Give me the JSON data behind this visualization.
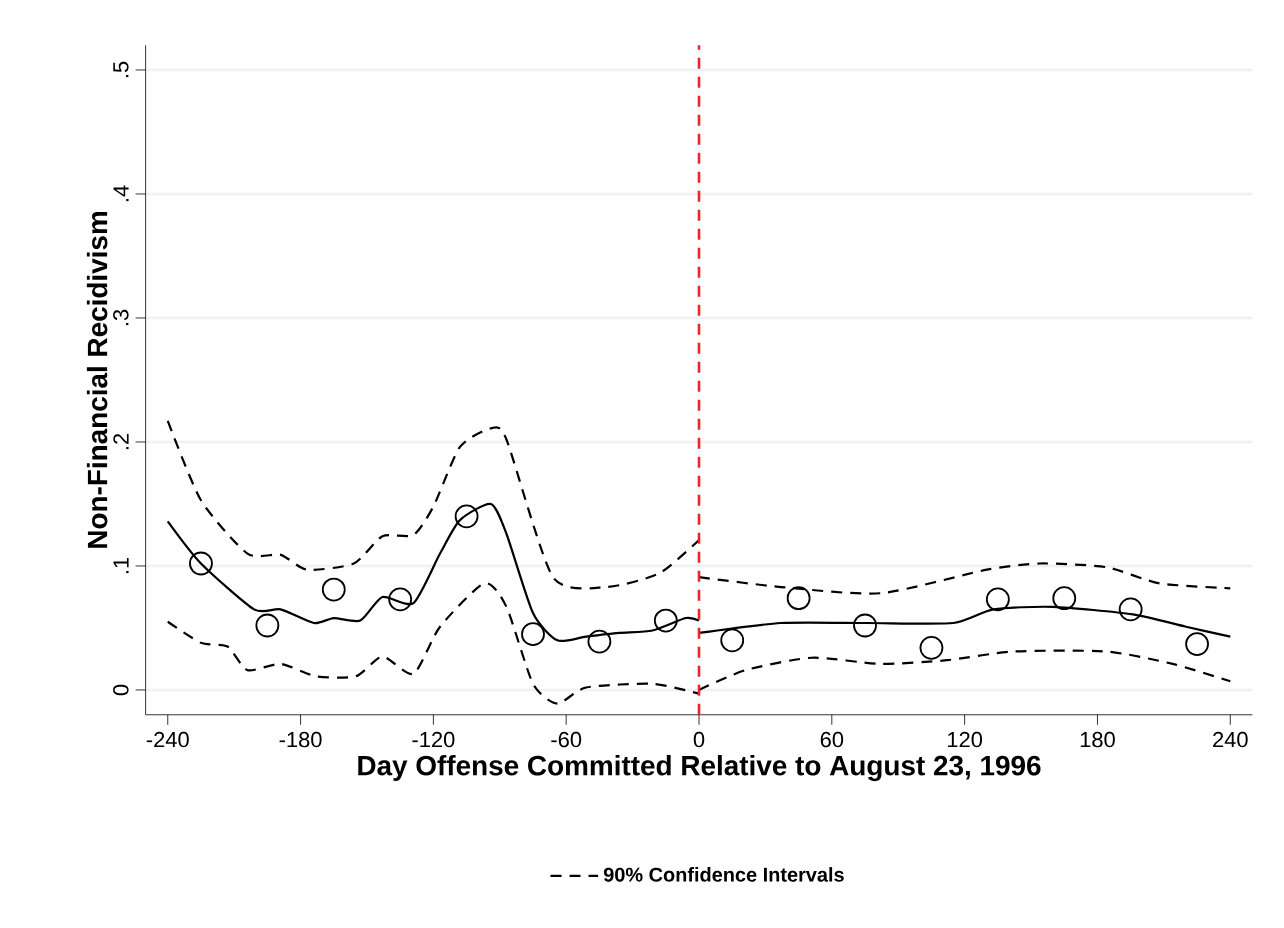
{
  "chart_data": {
    "type": "line",
    "xlabel": "Day Offense Committed Relative to August 23, 1996",
    "ylabel": "Non-Financial Recidivism",
    "xlim": [
      -250,
      250
    ],
    "ylim": [
      -0.02,
      0.52
    ],
    "xticks": [
      -240,
      -180,
      -120,
      -60,
      0,
      60,
      120,
      180,
      240
    ],
    "yticks": [
      {
        "value": 0,
        "label": "0"
      },
      {
        "value": 0.1,
        "label": ".1"
      },
      {
        "value": 0.2,
        "label": ".2"
      },
      {
        "value": 0.3,
        "label": ".3"
      },
      {
        "value": 0.4,
        "label": ".4"
      },
      {
        "value": 0.5,
        "label": ".5"
      }
    ],
    "grid": "y",
    "legend": "bottom",
    "ref_lines": [
      {
        "axis": "x",
        "value": 0,
        "color": "#e8262b",
        "line_style": "dashed"
      }
    ],
    "series": [
      {
        "type": "scatter",
        "color": "#000000",
        "marker": "circle",
        "x": [
          -225,
          -195,
          -165,
          -135,
          -105,
          -75,
          -45,
          -15,
          15,
          45,
          75,
          105,
          135,
          165,
          195,
          225
        ],
        "values": [
          0.102,
          0.052,
          0.081,
          0.073,
          0.14,
          0.045,
          0.039,
          0.056,
          0.04,
          0.074,
          0.052,
          0.034,
          0.073,
          0.074,
          0.065,
          0.037
        ]
      },
      {
        "color": "#000000",
        "line_style": "solid",
        "x": [
          -240,
          -225,
          -201,
          -189,
          -174,
          -165,
          -153,
          -143,
          -129,
          -117,
          -108,
          -94,
          -87,
          -75,
          -64,
          -51,
          -36,
          -21,
          -6,
          0
        ],
        "values": [
          0.136,
          0.102,
          0.065,
          0.065,
          0.054,
          0.058,
          0.056,
          0.075,
          0.07,
          0.11,
          0.137,
          0.15,
          0.126,
          0.062,
          0.04,
          0.043,
          0.046,
          0.048,
          0.058,
          0.056
        ]
      },
      {
        "color": "#000000",
        "line_style": "solid",
        "x": [
          0,
          37,
          76,
          115,
          133,
          160,
          196,
          220,
          240
        ],
        "values": [
          0.046,
          0.054,
          0.054,
          0.054,
          0.065,
          0.067,
          0.061,
          0.051,
          0.043
        ]
      },
      {
        "type": "line",
        "name": "90% Confidence Intervals",
        "color": "#000000",
        "line_style": "dashed",
        "x": [
          -240,
          -225,
          -204,
          -189,
          -177,
          -156,
          -143,
          -129,
          -120,
          -108,
          -94,
          -87,
          -66,
          -42,
          -18,
          0
        ],
        "values": [
          0.217,
          0.153,
          0.11,
          0.109,
          0.097,
          0.102,
          0.124,
          0.125,
          0.148,
          0.196,
          0.211,
          0.202,
          0.091,
          0.083,
          0.094,
          0.121
        ]
      },
      {
        "type": "line",
        "color": "#000000",
        "line_style": "dashed",
        "x": [
          -240,
          -225,
          -213,
          -204,
          -189,
          -173,
          -155,
          -143,
          -129,
          -117,
          -97,
          -87,
          -75,
          -64,
          -51,
          -21,
          0
        ],
        "values": [
          0.055,
          0.038,
          0.035,
          0.016,
          0.021,
          0.011,
          0.011,
          0.027,
          0.013,
          0.051,
          0.086,
          0.067,
          0.005,
          -0.011,
          0.002,
          0.005,
          -0.003
        ]
      },
      {
        "type": "line",
        "color": "#000000",
        "line_style": "dashed",
        "x": [
          0,
          37,
          82,
          130,
          154,
          184,
          208,
          240
        ],
        "values": [
          0.091,
          0.083,
          0.078,
          0.097,
          0.102,
          0.099,
          0.086,
          0.082
        ]
      },
      {
        "type": "line",
        "color": "#000000",
        "line_style": "dashed",
        "x": [
          0,
          21,
          51,
          82,
          112,
          142,
          184,
          214,
          240
        ],
        "values": [
          0.0,
          0.016,
          0.026,
          0.021,
          0.024,
          0.031,
          0.031,
          0.021,
          0.007
        ]
      }
    ]
  }
}
